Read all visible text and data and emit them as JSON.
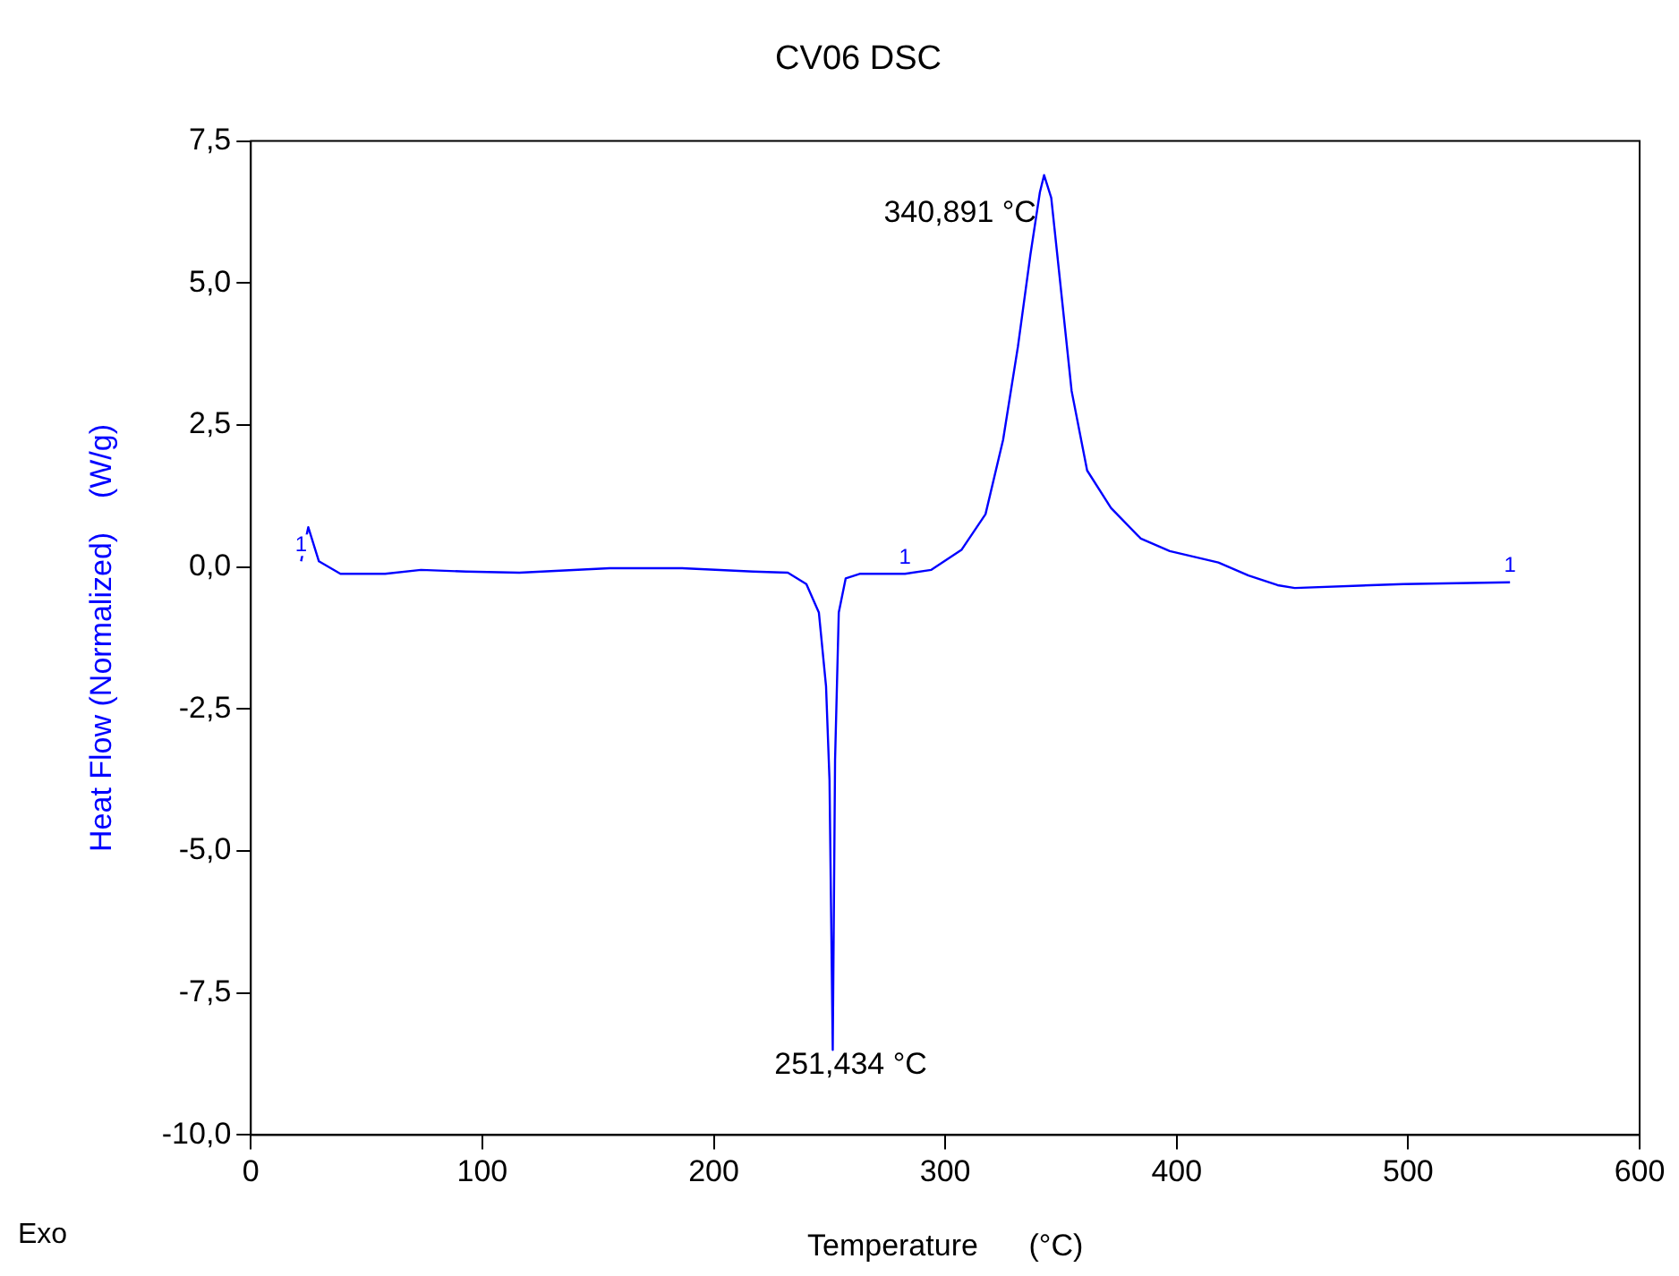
{
  "chart_data": {
    "type": "line",
    "title": "CV06 DSC",
    "xlabel": "Temperature      (°C)",
    "ylabel": "Heat Flow (Normalized)    (W/g)",
    "xlim": [
      0,
      600
    ],
    "xticks": [
      0,
      100,
      200,
      300,
      400,
      500,
      600
    ],
    "ylim": [
      -10,
      7.5
    ],
    "yticks": [
      {
        "value": -10,
        "label": "-10,0"
      },
      {
        "value": -7.5,
        "label": "-7,5"
      },
      {
        "value": -5,
        "label": "-5,0"
      },
      {
        "value": -2.5,
        "label": "-2,5"
      },
      {
        "value": 0,
        "label": "0,0"
      },
      {
        "value": 2.5,
        "label": "2,5"
      },
      {
        "value": 5,
        "label": "5,0"
      },
      {
        "value": 7.5,
        "label": "7,5"
      }
    ],
    "grid": false,
    "legend": false,
    "series": [
      {
        "color": "#0000ff",
        "x": [
          21.7,
          24.8,
          29.4,
          38.7,
          58,
          73.5,
          93,
          116,
          155,
          186,
          217,
          232,
          240,
          245.4,
          248.5,
          250,
          251.4,
          252.4,
          254,
          257,
          263,
          282.6,
          294,
          307,
          317.4,
          325,
          331.4,
          336.8,
          340.9,
          342.7,
          345.8,
          349.7,
          354.6,
          361.3,
          371.6,
          384.5,
          397,
          418,
          431,
          443.6,
          451,
          498,
          544
        ],
        "values": [
          0.1,
          0.7,
          0.1,
          -0.12,
          -0.12,
          -0.05,
          -0.08,
          -0.1,
          -0.02,
          -0.02,
          -0.08,
          -0.1,
          -0.3,
          -0.8,
          -2.1,
          -3.75,
          -8.5,
          -3.4,
          -0.8,
          -0.2,
          -0.12,
          -0.12,
          -0.05,
          0.3,
          0.93,
          2.24,
          3.88,
          5.5,
          6.6,
          6.9,
          6.5,
          5.0,
          3.1,
          1.7,
          1.04,
          0.5,
          0.28,
          0.08,
          -0.15,
          -0.32,
          -0.37,
          -0.3,
          -0.27
        ]
      }
    ],
    "annotations": [
      {
        "text": "340,891 °C",
        "x": 340.891,
        "y": 6.6
      },
      {
        "text": "251,434 °C",
        "x": 251.434,
        "y": -8.5
      },
      {
        "text": "1",
        "x": 21.7,
        "y": 0.1
      },
      {
        "text": "1",
        "x": 282.6,
        "y": -0.12
      },
      {
        "text": "1",
        "x": 544,
        "y": -0.27
      },
      "Exo"
    ]
  }
}
